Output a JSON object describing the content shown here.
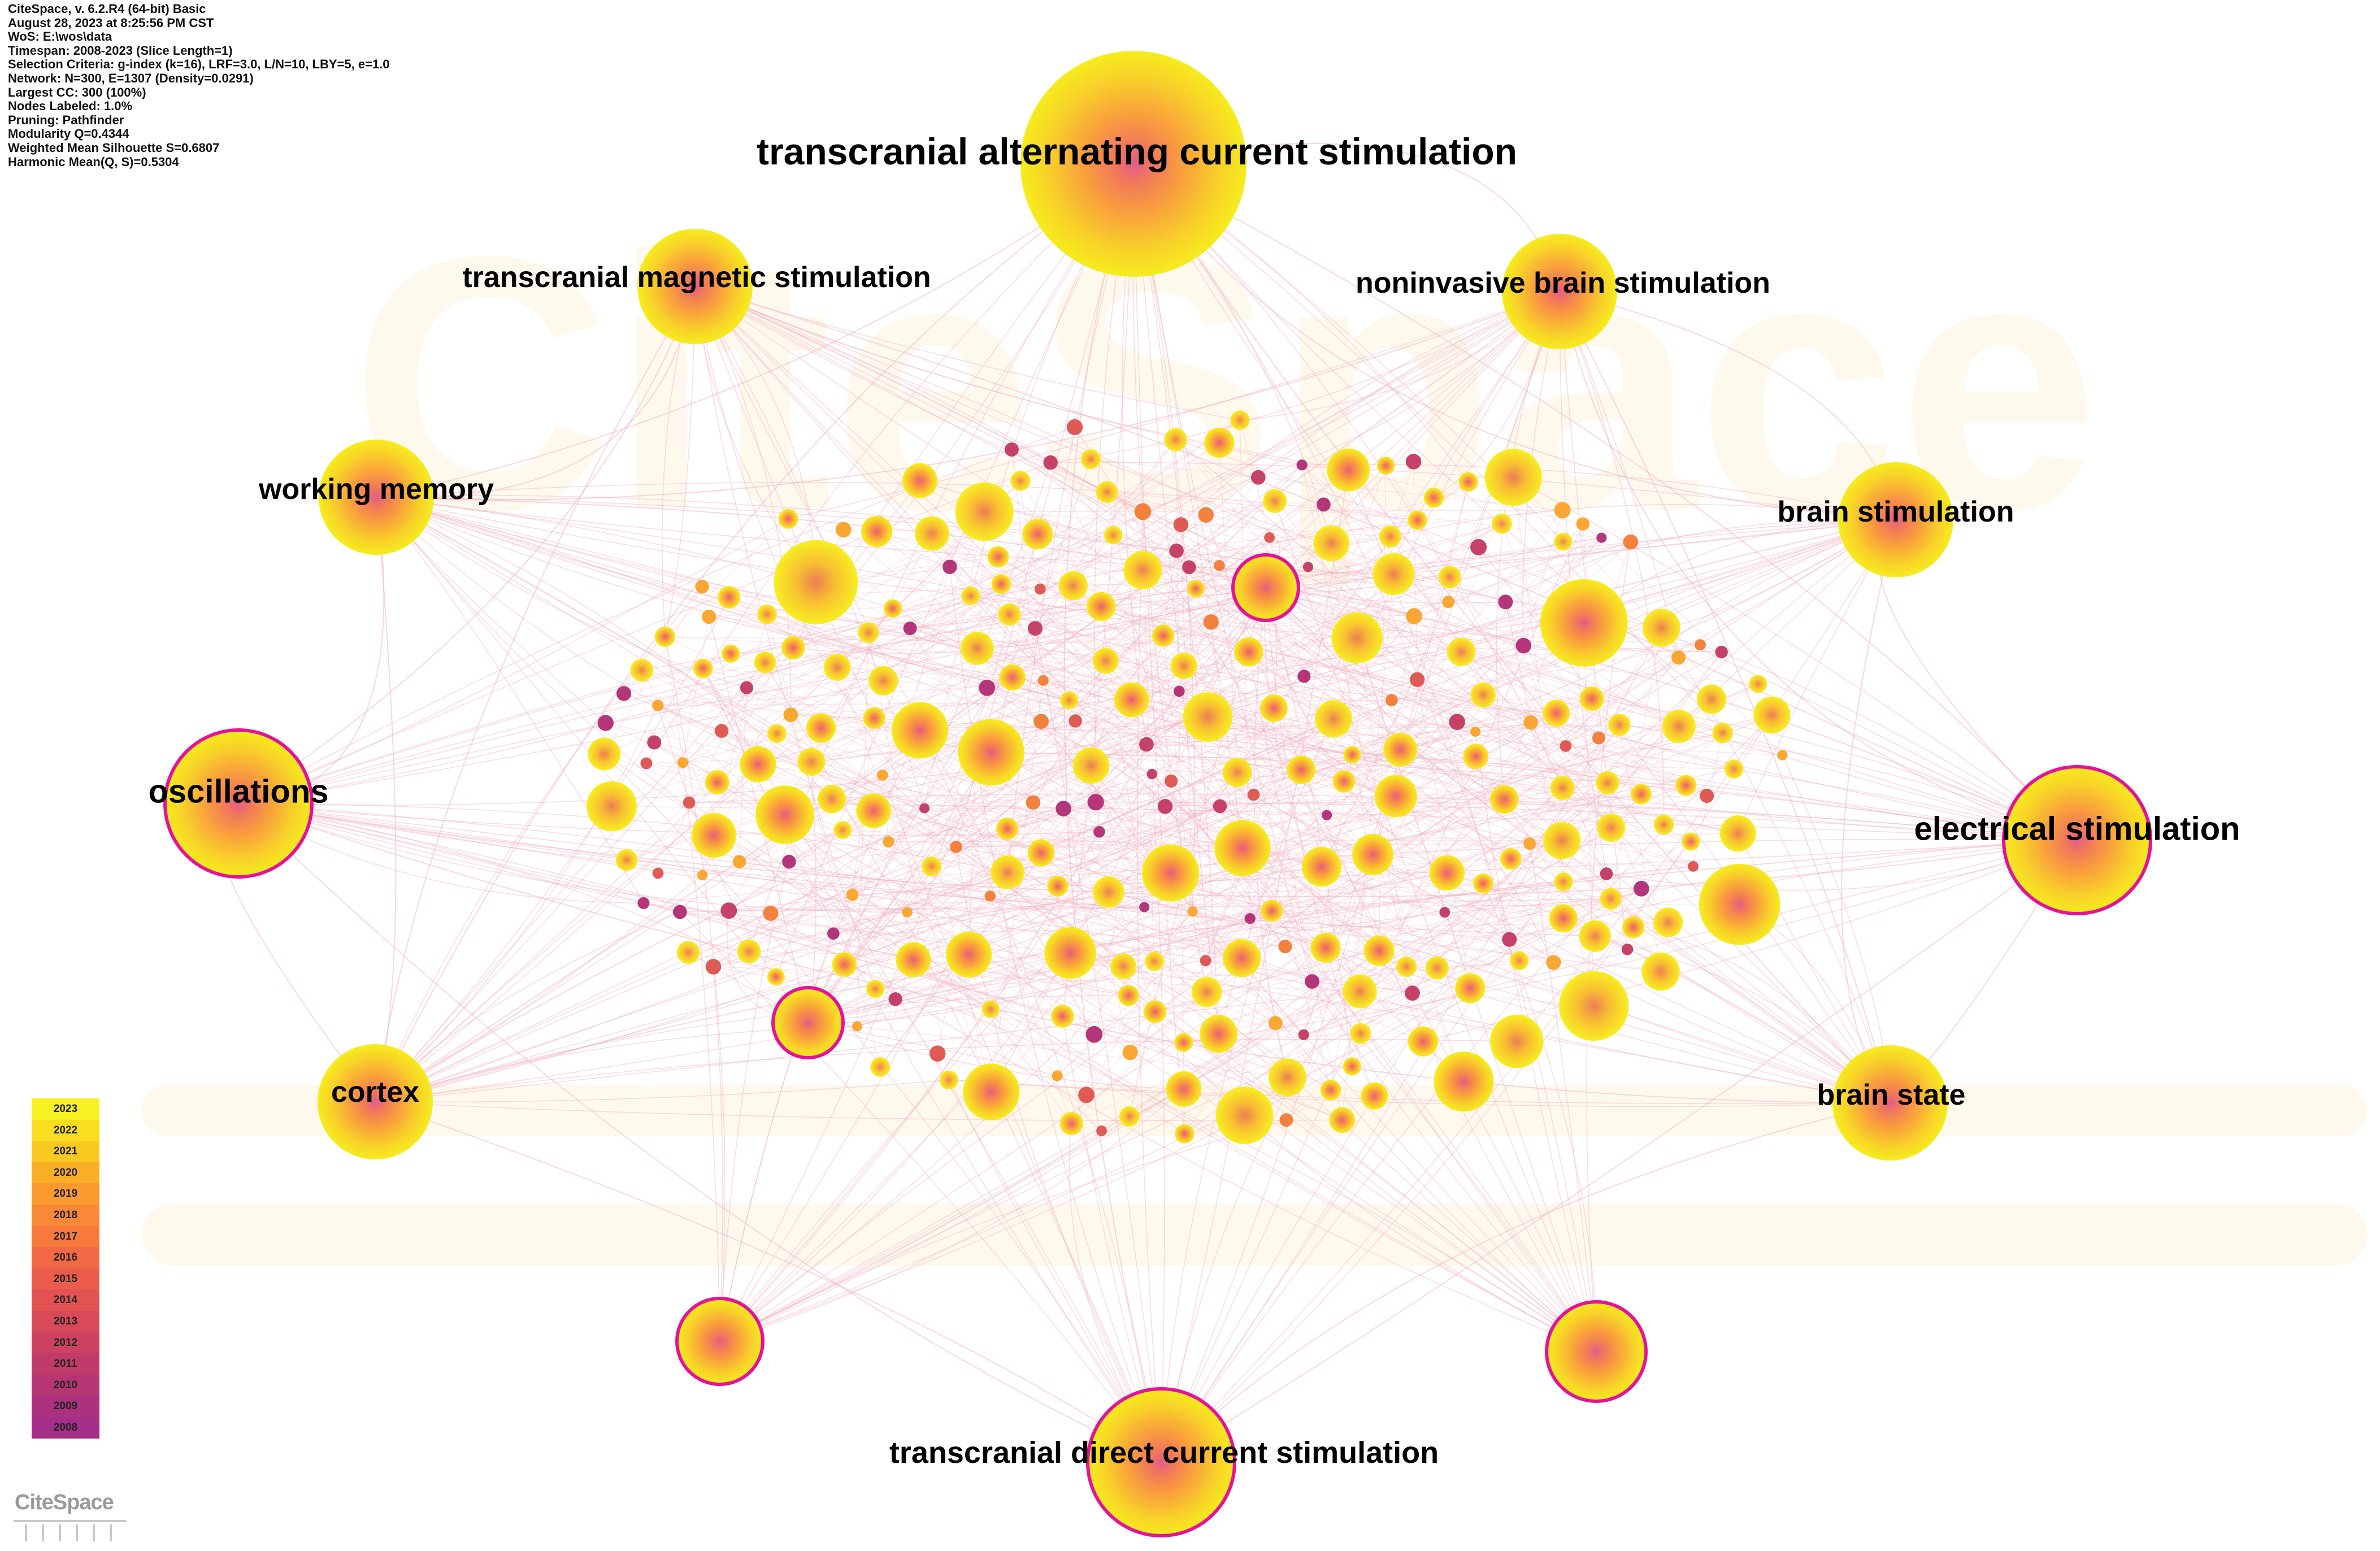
{
  "info_lines": [
    "CiteSpace, v. 6.2.R4 (64-bit) Basic",
    "August 28, 2023 at 8:25:56 PM CST",
    "WoS: E:\\wos\\data",
    "Timespan: 2008-2023 (Slice Length=1)",
    "Selection Criteria: g-index (k=16), LRF=3.0, L/N=10, LBY=5, e=1.0",
    "Network: N=300, E=1307 (Density=0.0291)",
    "Largest CC: 300 (100%)",
    "Nodes Labeled: 1.0%",
    "Pruning: Pathfinder",
    "Modularity Q=0.4344",
    "Weighted Mean Silhouette S=0.6807",
    "Harmonic Mean(Q, S)=0.5304"
  ],
  "legend": {
    "years": [
      "2023",
      "2022",
      "2021",
      "2020",
      "2019",
      "2018",
      "2017",
      "2016",
      "2015",
      "2014",
      "2013",
      "2012",
      "2011",
      "2010",
      "2009",
      "2008"
    ],
    "colors": [
      "#f7f022",
      "#f8dd20",
      "#f9c821",
      "#faae28",
      "#fb9a2f",
      "#f98937",
      "#f7793e",
      "#f26a45",
      "#ec5c4c",
      "#e35253",
      "#d84a5a",
      "#cd4262",
      "#c13b6a",
      "#b63674",
      "#ac317e",
      "#a32f88"
    ]
  },
  "keywords": [
    {
      "label": "transcranial alternating current stimulation",
      "strength": 5,
      "burst": false,
      "color": "#f7f022"
    },
    {
      "label": "transcranial magnetic stimulation",
      "strength": 2,
      "burst": false,
      "color": "#f7f022"
    },
    {
      "label": "noninvasive brain stimulation",
      "strength": 2,
      "burst": false,
      "color": "#f7f022"
    },
    {
      "label": "working memory",
      "strength": 2,
      "burst": false,
      "color": "#f7f022"
    },
    {
      "label": "brain stimulation",
      "strength": 2,
      "burst": false,
      "color": "#f7f022"
    },
    {
      "label": "oscillations",
      "strength": 3,
      "burst": true,
      "color": "#f7f022"
    },
    {
      "label": "electrical stimulation",
      "strength": 3,
      "burst": true,
      "color": "#f7f022"
    },
    {
      "label": "cortex",
      "strength": 2,
      "burst": false,
      "color": "#f7f022"
    },
    {
      "label": "brain state",
      "strength": 2,
      "burst": false,
      "color": "#f7f022"
    },
    {
      "label": "transcranial direct current stimulation",
      "strength": 3,
      "burst": true,
      "color": "#f7f022"
    }
  ],
  "unlabeled_burst_nodes": 4,
  "burst_ring_color": "#e6119b",
  "link_color": "#f2b0c0",
  "watermark_text": "CiteSpace",
  "logo_text": "CiteSpace"
}
